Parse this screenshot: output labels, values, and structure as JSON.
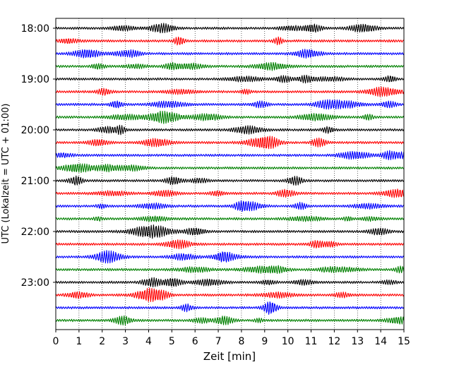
{
  "chart_data": {
    "type": "line",
    "title": "",
    "xlabel": "Zeit  [min]",
    "ylabel": "UTC (Lokalzeit = UTC + 01:00)",
    "xlim": [
      0,
      15
    ],
    "x_ticks": [
      "0",
      "1",
      "2",
      "3",
      "4",
      "5",
      "6",
      "7",
      "8",
      "9",
      "10",
      "11",
      "12",
      "13",
      "14",
      "15"
    ],
    "y_tick_labels": [
      "18:00",
      "19:00",
      "20:00",
      "21:00",
      "22:00",
      "23:00"
    ],
    "grid": "vertical dotted lines at each minute",
    "trace_interval_minutes": 15,
    "trace_start": "18:00",
    "trace_count": 24,
    "trace_colors": [
      "#000000",
      "#ff0000",
      "#0000ff",
      "#008000"
    ]
  }
}
